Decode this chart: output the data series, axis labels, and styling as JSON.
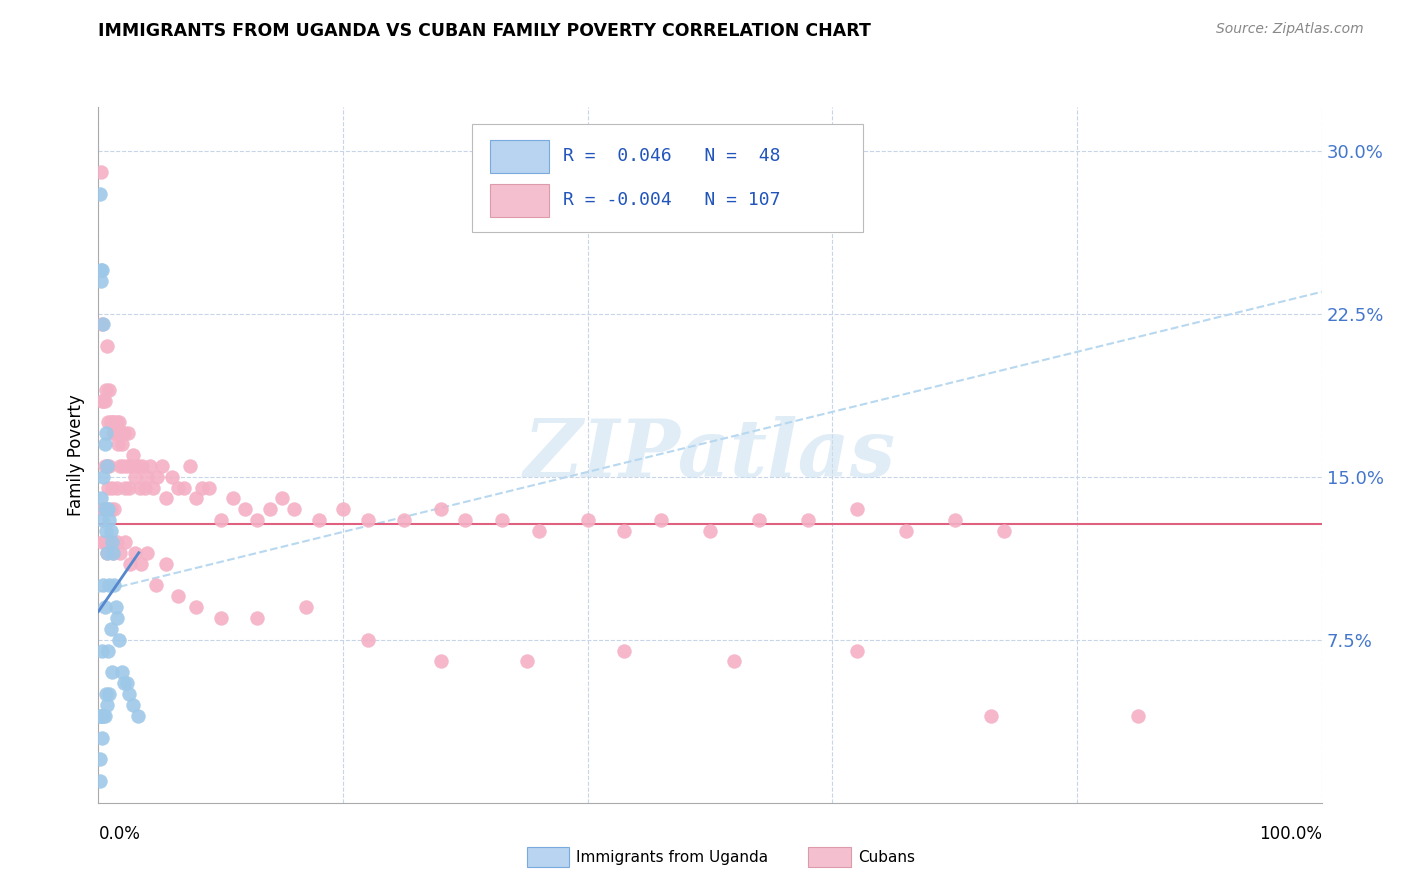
{
  "title": "IMMIGRANTS FROM UGANDA VS CUBAN FAMILY POVERTY CORRELATION CHART",
  "source": "Source: ZipAtlas.com",
  "ylabel": "Family Poverty",
  "xlim": [
    0.0,
    1.0
  ],
  "ylim": [
    0.0,
    0.32
  ],
  "legend_label1": "Immigrants from Uganda",
  "legend_label2": "Cubans",
  "blue_color": "#9ec8e8",
  "pink_color": "#f4b0c4",
  "trend_blue_dashed": "#b8d8f0",
  "trend_blue_solid": "#5588cc",
  "trend_pink_solid": "#e06080",
  "watermark_color": "#c8dff0",
  "grid_color": "#c8d4e8",
  "ytick_color": "#4477cc",
  "ytick_vals": [
    0.075,
    0.15,
    0.225,
    0.3
  ],
  "ytick_labels": [
    "7.5%",
    "15.0%",
    "22.5%",
    "30.0%"
  ],
  "uganda_x": [
    0.001,
    0.001,
    0.002,
    0.002,
    0.002,
    0.002,
    0.003,
    0.003,
    0.003,
    0.003,
    0.003,
    0.004,
    0.004,
    0.004,
    0.004,
    0.005,
    0.005,
    0.005,
    0.005,
    0.006,
    0.006,
    0.006,
    0.007,
    0.007,
    0.007,
    0.007,
    0.008,
    0.008,
    0.009,
    0.009,
    0.009,
    0.01,
    0.01,
    0.011,
    0.011,
    0.012,
    0.013,
    0.014,
    0.015,
    0.017,
    0.019,
    0.021,
    0.023,
    0.025,
    0.028,
    0.032,
    0.001,
    0.001
  ],
  "uganda_y": [
    0.28,
    0.04,
    0.245,
    0.24,
    0.14,
    0.04,
    0.245,
    0.13,
    0.07,
    0.04,
    0.03,
    0.22,
    0.15,
    0.1,
    0.04,
    0.165,
    0.135,
    0.09,
    0.04,
    0.17,
    0.125,
    0.05,
    0.155,
    0.135,
    0.115,
    0.045,
    0.135,
    0.07,
    0.13,
    0.1,
    0.05,
    0.125,
    0.08,
    0.12,
    0.06,
    0.115,
    0.1,
    0.09,
    0.085,
    0.075,
    0.06,
    0.055,
    0.055,
    0.05,
    0.045,
    0.04,
    0.02,
    0.01
  ],
  "cuban_x": [
    0.002,
    0.003,
    0.003,
    0.004,
    0.004,
    0.005,
    0.005,
    0.006,
    0.006,
    0.007,
    0.007,
    0.008,
    0.008,
    0.009,
    0.009,
    0.01,
    0.01,
    0.011,
    0.011,
    0.012,
    0.013,
    0.013,
    0.014,
    0.015,
    0.015,
    0.016,
    0.017,
    0.018,
    0.019,
    0.02,
    0.021,
    0.022,
    0.023,
    0.024,
    0.025,
    0.027,
    0.028,
    0.03,
    0.032,
    0.034,
    0.036,
    0.038,
    0.04,
    0.042,
    0.045,
    0.048,
    0.052,
    0.055,
    0.06,
    0.065,
    0.07,
    0.075,
    0.08,
    0.085,
    0.09,
    0.1,
    0.11,
    0.12,
    0.13,
    0.14,
    0.15,
    0.16,
    0.18,
    0.2,
    0.22,
    0.25,
    0.28,
    0.3,
    0.33,
    0.36,
    0.4,
    0.43,
    0.46,
    0.5,
    0.54,
    0.58,
    0.62,
    0.66,
    0.7,
    0.74,
    0.003,
    0.005,
    0.007,
    0.009,
    0.012,
    0.015,
    0.018,
    0.022,
    0.026,
    0.03,
    0.035,
    0.04,
    0.047,
    0.055,
    0.065,
    0.08,
    0.1,
    0.13,
    0.17,
    0.22,
    0.28,
    0.35,
    0.43,
    0.52,
    0.62,
    0.73,
    0.85
  ],
  "cuban_y": [
    0.29,
    0.22,
    0.185,
    0.185,
    0.135,
    0.185,
    0.155,
    0.19,
    0.135,
    0.21,
    0.155,
    0.175,
    0.145,
    0.19,
    0.155,
    0.175,
    0.135,
    0.175,
    0.145,
    0.17,
    0.175,
    0.135,
    0.17,
    0.175,
    0.145,
    0.165,
    0.175,
    0.155,
    0.165,
    0.155,
    0.17,
    0.145,
    0.155,
    0.17,
    0.145,
    0.155,
    0.16,
    0.15,
    0.155,
    0.145,
    0.155,
    0.145,
    0.15,
    0.155,
    0.145,
    0.15,
    0.155,
    0.14,
    0.15,
    0.145,
    0.145,
    0.155,
    0.14,
    0.145,
    0.145,
    0.13,
    0.14,
    0.135,
    0.13,
    0.135,
    0.14,
    0.135,
    0.13,
    0.135,
    0.13,
    0.13,
    0.135,
    0.13,
    0.13,
    0.125,
    0.13,
    0.125,
    0.13,
    0.125,
    0.13,
    0.13,
    0.135,
    0.125,
    0.13,
    0.125,
    0.12,
    0.12,
    0.115,
    0.12,
    0.115,
    0.12,
    0.115,
    0.12,
    0.11,
    0.115,
    0.11,
    0.115,
    0.1,
    0.11,
    0.095,
    0.09,
    0.085,
    0.085,
    0.09,
    0.075,
    0.065,
    0.065,
    0.07,
    0.065,
    0.07,
    0.04,
    0.04
  ]
}
